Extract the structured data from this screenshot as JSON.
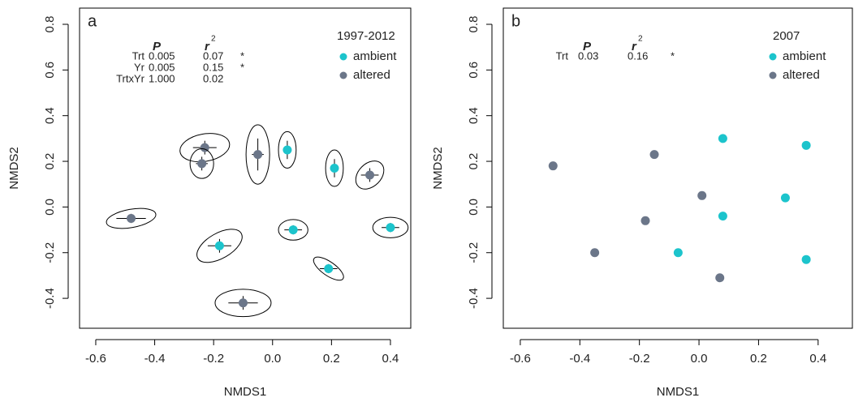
{
  "chart_data": [
    {
      "type": "scatter",
      "label": "a",
      "x_label": "NMDS1",
      "y_label": "NMDS2",
      "legend_title": "1997-2012",
      "xlim": [
        -0.655,
        0.469
      ],
      "ylim": [
        -0.531,
        0.871
      ],
      "xticks": [
        -0.6,
        -0.4,
        -0.2,
        {
          "value": 0,
          "label": "0.0"
        },
        0.2,
        0.4
      ],
      "yticks": [
        -0.4,
        -0.2,
        {
          "value": 0,
          "label": "0.0"
        },
        0.2,
        0.4,
        0.6,
        0.8
      ],
      "stats": {
        "columns": [
          "P",
          "r"
        ],
        "r_superscript": "2",
        "rows": [
          [
            "Trt",
            "0.005",
            "0.07",
            "*"
          ],
          [
            "Yr",
            "0.005",
            "0.15",
            "*"
          ],
          [
            "TrtxYr",
            "1.000",
            "0.02"
          ]
        ]
      },
      "series": [
        {
          "name": "ambient",
          "color": "#1cc4cc",
          "x": [
            0.05,
            0.21,
            0.07,
            0.4,
            -0.18,
            0.19
          ],
          "values": [
            0.25,
            0.17,
            -0.1,
            -0.09,
            -0.17,
            -0.27
          ],
          "x_err": [
            0.01,
            0.01,
            0.03,
            0.03,
            0.04,
            0.03
          ],
          "y_err": [
            0.04,
            0.04,
            0.02,
            0.02,
            0.03,
            0.02
          ],
          "ellipse_width": [
            0.06,
            0.06,
            0.1,
            0.12,
            0.17,
            0.12
          ],
          "ellipse_height": [
            0.16,
            0.16,
            0.09,
            0.09,
            0.11,
            0.06
          ],
          "ellipse_angle": [
            0,
            0,
            0,
            0,
            30,
            -35
          ]
        },
        {
          "name": "altered",
          "color": "#6b7689",
          "x": [
            -0.23,
            -0.24,
            -0.05,
            0.33,
            -0.48,
            -0.1
          ],
          "values": [
            0.26,
            0.19,
            0.23,
            0.14,
            -0.05,
            -0.42
          ],
          "x_err": [
            0.04,
            0.02,
            0.02,
            0.03,
            0.05,
            0.05
          ],
          "y_err": [
            0.03,
            0.03,
            0.07,
            0.03,
            0.02,
            0.03
          ],
          "ellipse_width": [
            0.17,
            0.08,
            0.08,
            0.11,
            0.17,
            0.19
          ],
          "ellipse_height": [
            0.12,
            0.13,
            0.26,
            0.1,
            0.08,
            0.12
          ],
          "ellipse_angle": [
            10,
            0,
            0,
            45,
            10,
            0
          ]
        }
      ]
    },
    {
      "type": "scatter",
      "label": "b",
      "x_label": "NMDS1",
      "y_label": "NMDS2",
      "legend_title": "2007",
      "xlim": [
        -0.657,
        0.515
      ],
      "ylim": [
        -0.531,
        0.871
      ],
      "xticks": [
        -0.6,
        -0.4,
        -0.2,
        {
          "value": 0,
          "label": "0.0"
        },
        0.2,
        0.4
      ],
      "yticks": [
        -0.4,
        -0.2,
        {
          "value": 0,
          "label": "0.0"
        },
        0.2,
        0.4,
        0.6,
        0.8
      ],
      "stats": {
        "columns": [
          "P",
          "r"
        ],
        "r_superscript": "2",
        "rows": [
          [
            "Trt",
            "0.03",
            "0.16",
            "*"
          ]
        ]
      },
      "series": [
        {
          "name": "ambient",
          "color": "#1cc4cc",
          "x": [
            0.08,
            0.36,
            0.29,
            0.08,
            -0.07,
            0.36
          ],
          "values": [
            0.3,
            0.27,
            0.04,
            -0.04,
            -0.2,
            -0.23
          ]
        },
        {
          "name": "altered",
          "color": "#6b7689",
          "x": [
            -0.49,
            -0.15,
            0.01,
            -0.18,
            -0.35,
            0.07
          ],
          "values": [
            0.18,
            0.23,
            0.05,
            -0.06,
            -0.2,
            -0.31
          ]
        }
      ]
    }
  ]
}
